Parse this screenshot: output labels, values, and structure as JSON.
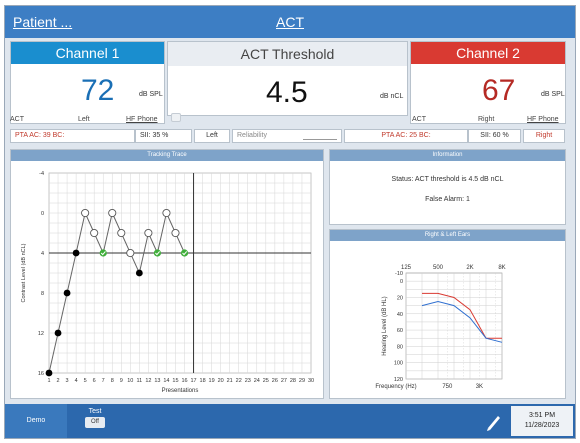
{
  "header": {
    "patient_label": "Patient ...",
    "title": "ACT"
  },
  "channel1": {
    "label": "Channel 1",
    "value": "72",
    "unit": "dB SPL",
    "mode": "ACT",
    "side": "Left",
    "transducer": "HF Phone",
    "color": "#1a8ecf"
  },
  "threshold": {
    "label": "ACT Threshold",
    "value": "4.5",
    "unit": "dB nCL"
  },
  "channel2": {
    "label": "Channel 2",
    "value": "67",
    "unit": "dB SPL",
    "mode": "ACT",
    "side": "Right",
    "transducer": "HF Phone",
    "color": "#d93a32"
  },
  "info_row": {
    "left_pta": "PTA AC: 39 BC:",
    "left_sii": "SII: 35 %",
    "left_side": "Left",
    "reliability_placeholder": "Reliability",
    "right_pta": "PTA AC: 25 BC:",
    "right_sii": "SII: 60 %",
    "right_side": "Right"
  },
  "tracking": {
    "title": "Tracking Trace",
    "chart_data": {
      "type": "line",
      "title": "Tracking Trace",
      "xlabel": "Presentations",
      "ylabel": "Contrast Level (dB nCL)",
      "xlim": [
        1,
        30
      ],
      "x_ticks": [
        "1",
        "2",
        "3",
        "4",
        "5",
        "6",
        "7",
        "8",
        "9",
        "10",
        "11",
        "12",
        "13",
        "14",
        "15",
        "16",
        "17",
        "18",
        "19",
        "20",
        "21",
        "22",
        "23",
        "24",
        "25",
        "26",
        "27",
        "28",
        "29",
        "30"
      ],
      "ylim": [
        -4,
        16
      ],
      "y_ticks": [
        "-4",
        "0",
        "4",
        "8",
        "12",
        "16"
      ],
      "y_inverted": true,
      "crosshair": {
        "x": 17,
        "y": 4
      },
      "points": [
        {
          "x": 1,
          "y": 16,
          "marker": "filled"
        },
        {
          "x": 2,
          "y": 12,
          "marker": "filled"
        },
        {
          "x": 3,
          "y": 8,
          "marker": "filled"
        },
        {
          "x": 4,
          "y": 4,
          "marker": "filled"
        },
        {
          "x": 5,
          "y": 0,
          "marker": "open"
        },
        {
          "x": 6,
          "y": 2,
          "marker": "open"
        },
        {
          "x": 7,
          "y": 4,
          "marker": "check"
        },
        {
          "x": 8,
          "y": 0,
          "marker": "open"
        },
        {
          "x": 9,
          "y": 2,
          "marker": "open"
        },
        {
          "x": 10,
          "y": 4,
          "marker": "open"
        },
        {
          "x": 11,
          "y": 6,
          "marker": "filled"
        },
        {
          "x": 12,
          "y": 2,
          "marker": "open"
        },
        {
          "x": 13,
          "y": 4,
          "marker": "check"
        },
        {
          "x": 14,
          "y": 0,
          "marker": "open"
        },
        {
          "x": 15,
          "y": 2,
          "marker": "open"
        },
        {
          "x": 16,
          "y": 4,
          "marker": "check"
        }
      ]
    }
  },
  "information": {
    "title": "Information",
    "status": "Status: ACT threshold is  4.5 dB nCL",
    "false_alarm": "False Alarm:  1"
  },
  "audiogram": {
    "title": "Right & Left Ears",
    "chart_data": {
      "type": "line",
      "title": "Right & Left Ears",
      "xlabel": "Frequency (Hz)",
      "ylabel": "Hearing Level (dB HL)",
      "x_top_ticks": [
        "125",
        "500",
        "2K",
        "8K"
      ],
      "x_bottom_ticks": [
        "750",
        "3K"
      ],
      "y_ticks": [
        "-10",
        "0",
        "20",
        "40",
        "60",
        "80",
        "100",
        "120"
      ],
      "ylim": [
        -10,
        120
      ],
      "y_inverted": true,
      "x_positions": [
        250,
        500,
        1000,
        2000,
        4000,
        8000
      ],
      "series": [
        {
          "color": "#d93a32",
          "values": [
            15,
            15,
            20,
            35,
            70,
            70
          ]
        },
        {
          "color": "#2f6fd0",
          "values": [
            30,
            25,
            30,
            45,
            70,
            75
          ]
        }
      ]
    }
  },
  "footer": {
    "demo": "Demo",
    "test_label": "Test",
    "test_value": "Off",
    "time": "3:51 PM",
    "date": "11/28/2023"
  }
}
